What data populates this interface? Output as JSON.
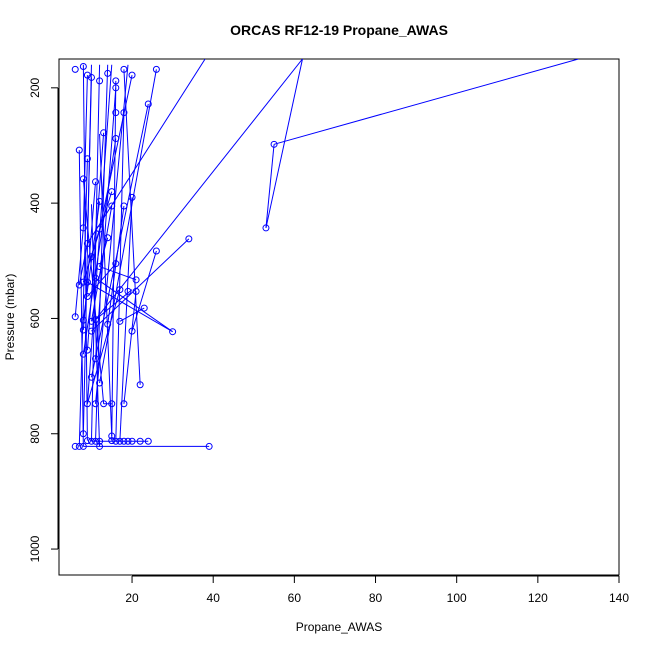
{
  "chart_data": {
    "type": "scatter",
    "title": "ORCAS RF12-19 Propane_AWAS",
    "xlabel": "Propane_AWAS",
    "ylabel": "Pressure (mbar)",
    "xlim": [
      2,
      140
    ],
    "ylim": [
      1045,
      150
    ],
    "y_reversed": true,
    "grid": false,
    "series_color": "#0000ff",
    "x_ticks": [
      20,
      40,
      60,
      80,
      100,
      120,
      140
    ],
    "y_ticks": [
      200,
      400,
      600,
      800,
      1000
    ],
    "points": [
      [
        6,
        168
      ],
      [
        8,
        163
      ],
      [
        9,
        178
      ],
      [
        12,
        188
      ],
      [
        10,
        182
      ],
      [
        14,
        175
      ],
      [
        16,
        188
      ],
      [
        18,
        168
      ],
      [
        20,
        178
      ],
      [
        26,
        168
      ],
      [
        16,
        200
      ],
      [
        24,
        228
      ],
      [
        16,
        243
      ],
      [
        18,
        243
      ],
      [
        7,
        308
      ],
      [
        13,
        278
      ],
      [
        16,
        288
      ],
      [
        9,
        323
      ],
      [
        8,
        358
      ],
      [
        11,
        363
      ],
      [
        15,
        380
      ],
      [
        12,
        397
      ],
      [
        18,
        405
      ],
      [
        15,
        405
      ],
      [
        20,
        390
      ],
      [
        55,
        298
      ],
      [
        53,
        443
      ],
      [
        8,
        443
      ],
      [
        12,
        445
      ],
      [
        9,
        470
      ],
      [
        14,
        460
      ],
      [
        34,
        462
      ],
      [
        26,
        483
      ],
      [
        10,
        493
      ],
      [
        16,
        505
      ],
      [
        12,
        510
      ],
      [
        7,
        542
      ],
      [
        9,
        537
      ],
      [
        11,
        530
      ],
      [
        8,
        537
      ],
      [
        21,
        533
      ],
      [
        9,
        562
      ],
      [
        17,
        550
      ],
      [
        19,
        553
      ],
      [
        21,
        553
      ],
      [
        23,
        582
      ],
      [
        11,
        602
      ],
      [
        6,
        597
      ],
      [
        8,
        603
      ],
      [
        10,
        605
      ],
      [
        14,
        610
      ],
      [
        17,
        605
      ],
      [
        30,
        623
      ],
      [
        20,
        622
      ],
      [
        8,
        620
      ],
      [
        10,
        622
      ],
      [
        9,
        655
      ],
      [
        11,
        670
      ],
      [
        8,
        662
      ],
      [
        10,
        702
      ],
      [
        12,
        712
      ],
      [
        22,
        715
      ],
      [
        9,
        748
      ],
      [
        11,
        748
      ],
      [
        13,
        748
      ],
      [
        18,
        748
      ],
      [
        15,
        748
      ],
      [
        8,
        800
      ],
      [
        15,
        804
      ],
      [
        10,
        813
      ],
      [
        11,
        813
      ],
      [
        12,
        813
      ],
      [
        9,
        812
      ],
      [
        15,
        812
      ],
      [
        16,
        813
      ],
      [
        17,
        813
      ],
      [
        18,
        813
      ],
      [
        19,
        813
      ],
      [
        20,
        813
      ],
      [
        22,
        813
      ],
      [
        24,
        813
      ],
      [
        6,
        822
      ],
      [
        7,
        822
      ],
      [
        8,
        822
      ],
      [
        12,
        822
      ],
      [
        39,
        822
      ]
    ],
    "segments": [
      [
        [
          8,
          800
        ],
        [
          10,
          160
        ]
      ],
      [
        [
          9,
          812
        ],
        [
          8,
          160
        ]
      ],
      [
        [
          10,
          813
        ],
        [
          12,
          160
        ]
      ],
      [
        [
          11,
          813
        ],
        [
          14,
          160
        ]
      ],
      [
        [
          15,
          812
        ],
        [
          16,
          188
        ]
      ],
      [
        [
          15,
          804
        ],
        [
          12,
          280
        ]
      ],
      [
        [
          12,
          822
        ],
        [
          10,
          402
        ]
      ],
      [
        [
          16,
          813
        ],
        [
          18,
          243
        ]
      ],
      [
        [
          17,
          813
        ],
        [
          20,
          390
        ]
      ],
      [
        [
          7,
          822
        ],
        [
          9,
          323
        ]
      ],
      [
        [
          8,
          822
        ],
        [
          7,
          308
        ]
      ],
      [
        [
          9,
          748
        ],
        [
          15,
          160
        ]
      ],
      [
        [
          11,
          748
        ],
        [
          19,
          160
        ]
      ],
      [
        [
          13,
          748
        ],
        [
          8,
          358
        ]
      ],
      [
        [
          18,
          748
        ],
        [
          21,
          553
        ]
      ],
      [
        [
          22,
          715
        ],
        [
          18,
          168
        ]
      ],
      [
        [
          12,
          712
        ],
        [
          26,
          168
        ]
      ],
      [
        [
          10,
          702
        ],
        [
          24,
          228
        ]
      ],
      [
        [
          11,
          670
        ],
        [
          16,
          200
        ]
      ],
      [
        [
          9,
          655
        ],
        [
          13,
          278
        ]
      ],
      [
        [
          8,
          662
        ],
        [
          16,
          288
        ]
      ],
      [
        [
          10,
          622
        ],
        [
          34,
          462
        ]
      ],
      [
        [
          8,
          620
        ],
        [
          11,
          363
        ]
      ],
      [
        [
          20,
          622
        ],
        [
          26,
          483
        ]
      ],
      [
        [
          30,
          623
        ],
        [
          9,
          537
        ]
      ],
      [
        [
          30,
          623
        ],
        [
          11,
          530
        ]
      ],
      [
        [
          17,
          605
        ],
        [
          23,
          582
        ]
      ],
      [
        [
          14,
          610
        ],
        [
          18,
          405
        ]
      ],
      [
        [
          10,
          605
        ],
        [
          15,
          405
        ]
      ],
      [
        [
          8,
          603
        ],
        [
          12,
          397
        ]
      ],
      [
        [
          6,
          597
        ],
        [
          8,
          443
        ]
      ],
      [
        [
          11,
          602
        ],
        [
          20,
          550
        ]
      ],
      [
        [
          11,
          602
        ],
        [
          62,
          150
        ]
      ],
      [
        [
          9,
          562
        ],
        [
          16,
          505
        ]
      ],
      [
        [
          7,
          542
        ],
        [
          9,
          470
        ]
      ],
      [
        [
          8,
          537
        ],
        [
          12,
          445
        ]
      ],
      [
        [
          21,
          533
        ],
        [
          12,
          510
        ]
      ],
      [
        [
          12,
          510
        ],
        [
          14,
          460
        ]
      ],
      [
        [
          10,
          493
        ],
        [
          15,
          380
        ]
      ],
      [
        [
          12,
          445
        ],
        [
          20,
          178
        ]
      ],
      [
        [
          9,
          470
        ],
        [
          38,
          150
        ]
      ],
      [
        [
          53,
          443
        ],
        [
          55,
          298
        ]
      ],
      [
        [
          55,
          298
        ],
        [
          130,
          150
        ]
      ],
      [
        [
          53,
          443
        ],
        [
          62,
          150
        ]
      ],
      [
        [
          9,
          470
        ],
        [
          10,
          182
        ]
      ],
      [
        [
          8,
          443
        ],
        [
          9,
          178
        ]
      ],
      [
        [
          13,
          748
        ],
        [
          15,
          748
        ]
      ],
      [
        [
          8,
          822
        ],
        [
          39,
          822
        ]
      ],
      [
        [
          10,
          813
        ],
        [
          24,
          813
        ]
      ],
      [
        [
          9,
          748
        ],
        [
          17,
          550
        ]
      ]
    ]
  }
}
